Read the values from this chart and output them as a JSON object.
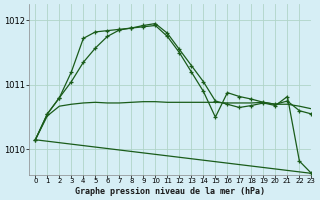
{
  "title": "Graphe pression niveau de la mer (hPa)",
  "background_color": "#d6eef5",
  "grid_color": "#b0d4c8",
  "line_color": "#1a5c1a",
  "xlim": [
    -0.5,
    23
  ],
  "ylim": [
    1009.6,
    1012.25
  ],
  "yticks": [
    1010,
    1011,
    1012
  ],
  "xticks": [
    0,
    1,
    2,
    3,
    4,
    5,
    6,
    7,
    8,
    9,
    10,
    11,
    12,
    13,
    14,
    15,
    16,
    17,
    18,
    19,
    20,
    21,
    22,
    23
  ],
  "line1_x": [
    0,
    1,
    2,
    3,
    4,
    5,
    6,
    7,
    8,
    9,
    10,
    11,
    12,
    13,
    14,
    15,
    16,
    17,
    18,
    19,
    20,
    21,
    22,
    23
  ],
  "line1_y": [
    1010.15,
    1010.55,
    1010.8,
    1011.05,
    1011.35,
    1011.57,
    1011.75,
    1011.85,
    1011.88,
    1011.92,
    1011.95,
    1011.8,
    1011.55,
    1011.3,
    1011.05,
    1010.75,
    1010.7,
    1010.65,
    1010.68,
    1010.72,
    1010.68,
    1010.82,
    1009.82,
    1009.63
  ],
  "line2_x": [
    0,
    1,
    2,
    3,
    4,
    5,
    6,
    7,
    8,
    9,
    10,
    11,
    12,
    13,
    14,
    15,
    16,
    17,
    18,
    19,
    20,
    21,
    22,
    23
  ],
  "line2_y": [
    1010.15,
    1010.55,
    1010.8,
    1011.2,
    1011.72,
    1011.82,
    1011.84,
    1011.86,
    1011.88,
    1011.9,
    1011.92,
    1011.75,
    1011.5,
    1011.2,
    1010.9,
    1010.5,
    1010.88,
    1010.82,
    1010.78,
    1010.73,
    1010.7,
    1010.75,
    1010.6,
    1010.55
  ],
  "line3_x": [
    0,
    1,
    2,
    3,
    4,
    5,
    6,
    7,
    8,
    9,
    10,
    11,
    12,
    13,
    14,
    15,
    16,
    17,
    18,
    19,
    20,
    21,
    22,
    23
  ],
  "line3_y": [
    1010.15,
    1010.52,
    1010.67,
    1010.7,
    1010.72,
    1010.73,
    1010.72,
    1010.72,
    1010.73,
    1010.74,
    1010.74,
    1010.73,
    1010.73,
    1010.73,
    1010.73,
    1010.73,
    1010.72,
    1010.72,
    1010.72,
    1010.73,
    1010.7,
    1010.7,
    1010.67,
    1010.63
  ],
  "line4_x": [
    0,
    23
  ],
  "line4_y": [
    1010.15,
    1009.63
  ]
}
